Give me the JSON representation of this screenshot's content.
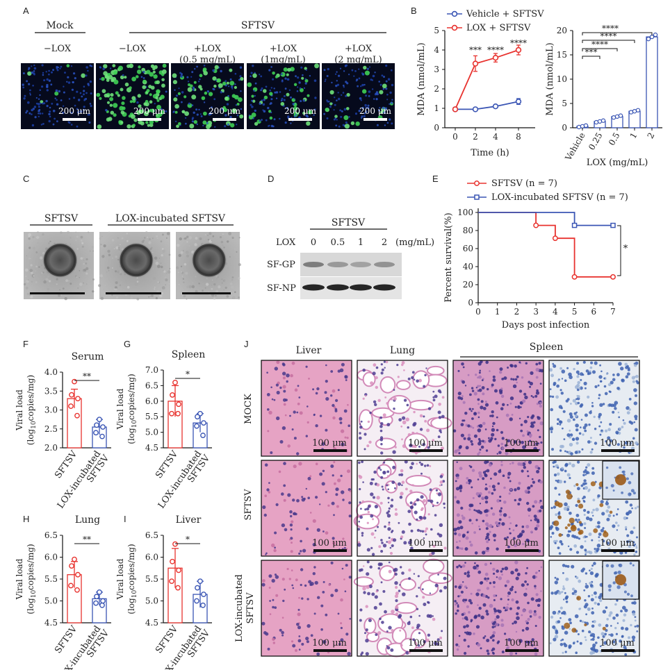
{
  "panels": {
    "A": "A",
    "B": "B",
    "C": "C",
    "D": "D",
    "E": "E",
    "F": "F",
    "G": "G",
    "H": "H",
    "I": "I",
    "J": "J"
  },
  "panel_a": {
    "mock_header": "Mock",
    "sftsv_header": "SFTSV",
    "labels": [
      {
        "l1": "−LOX",
        "l2": ""
      },
      {
        "l1": "−LOX",
        "l2": ""
      },
      {
        "l1": "+LOX",
        "l2": "(0.5 mg/mL)"
      },
      {
        "l1": "+LOX",
        "l2": "(1mg/mL)"
      },
      {
        "l1": "+LOX",
        "l2": "(2 mg/mL)"
      }
    ],
    "scale_text": "200 μm",
    "green_density": [
      0.02,
      0.85,
      0.45,
      0.3,
      0.12
    ]
  },
  "panel_c": {
    "label_left": "SFTSV",
    "label_right": "LOX-incubated SFTSV"
  },
  "panel_d": {
    "header": "SFTSV",
    "lox_label": "LOX",
    "conc": [
      "0",
      "0.5",
      "1",
      "2"
    ],
    "unit": "(mg/mL)",
    "rows": [
      "SF-GP",
      "SF-NP"
    ]
  },
  "panel_j": {
    "columns": [
      "Liver",
      "Lung",
      "Spleen"
    ],
    "rows": [
      "MOCK",
      "SFTSV",
      "LOX-incubated",
      "SFTSV"
    ],
    "scale_text": "100 μm"
  },
  "chart_data": [
    {
      "id": "B-left",
      "type": "line",
      "x": [
        0,
        2,
        4,
        8
      ],
      "x_ticks": [
        "0",
        "2",
        "4",
        "8"
      ],
      "xlabel": "Time (h)",
      "ylabel": "MDA (nmol/mL)",
      "ylim": [
        0,
        5
      ],
      "series": [
        {
          "name": "Vehicle + SFTSV",
          "color": "#3a55b4",
          "values": [
            0.95,
            0.95,
            1.1,
            1.35
          ]
        },
        {
          "name": "LOX + SFTSV",
          "color": "#e8322e",
          "values": [
            0.95,
            3.3,
            3.6,
            4.0
          ]
        }
      ],
      "annotations": [
        "***",
        "****",
        "****"
      ]
    },
    {
      "id": "B-right",
      "type": "bar",
      "categories": [
        "Vehicle",
        "0.25",
        "0.5",
        "1",
        "2"
      ],
      "values": [
        0.3,
        1.3,
        2.3,
        3.4,
        18.7
      ],
      "xlabel": "LOX (mg/mL)",
      "ylabel": "MDA (nmol/mL)",
      "ylim": [
        0,
        20
      ],
      "y_ticks": [
        "0",
        "5",
        "10",
        "15",
        "20"
      ],
      "brackets": [
        "****",
        "****",
        "****",
        "***"
      ]
    },
    {
      "id": "E",
      "type": "line",
      "xlabel": "Days post infection",
      "ylabel": "Percent survival(%)",
      "xlim": [
        0,
        7
      ],
      "ylim": [
        0,
        100
      ],
      "series": [
        {
          "name": "SFTSV",
          "name_n": "(n = 7)",
          "color": "#e8322e",
          "steps": [
            [
              0,
              100
            ],
            [
              3,
              100
            ],
            [
              3,
              85.7
            ],
            [
              4,
              85.7
            ],
            [
              4,
              71.4
            ],
            [
              5,
              71.4
            ],
            [
              5,
              28.6
            ],
            [
              7,
              28.6
            ]
          ]
        },
        {
          "name": "LOX-incubated SFTSV",
          "name_n": "(n = 7)",
          "color": "#3a55b4",
          "steps": [
            [
              0,
              100
            ],
            [
              5,
              100
            ],
            [
              5,
              85.7
            ],
            [
              7,
              85.7
            ]
          ]
        }
      ],
      "significance": "*"
    },
    {
      "id": "F",
      "type": "bar",
      "title": "Serum",
      "categories": [
        "SFTSV",
        "LOX-incubated SFTSV"
      ],
      "values": [
        3.3,
        2.55
      ],
      "err": [
        0.25,
        0.2
      ],
      "points": [
        [
          3.75,
          3.4,
          3.3,
          3.1,
          2.85
        ],
        [
          2.75,
          2.6,
          2.55,
          2.4,
          2.3
        ]
      ],
      "ylabel": "Viral load (log10copies/mg)",
      "ylim": [
        2.0,
        4.0
      ],
      "y_ticks": [
        "2.0",
        "2.5",
        "3.0",
        "3.5",
        "4.0"
      ],
      "significance": "**"
    },
    {
      "id": "G",
      "type": "bar",
      "title": "Spleen",
      "categories": [
        "SFTSV",
        "LOX-incubated SFTSV"
      ],
      "values": [
        6.0,
        5.3
      ],
      "err": [
        0.5,
        0.3
      ],
      "points": [
        [
          6.6,
          6.2,
          5.9,
          5.6,
          5.6
        ],
        [
          5.6,
          5.5,
          5.3,
          5.2,
          4.9
        ]
      ],
      "ylabel": "Viral load (log10copies/mg)",
      "ylim": [
        4.5,
        7.0
      ],
      "y_ticks": [
        "4.5",
        "5.0",
        "5.5",
        "6.0",
        "6.5",
        "7.0"
      ],
      "significance": "*"
    },
    {
      "id": "H",
      "type": "bar",
      "title": "Lung",
      "categories": [
        "SFTSV",
        "LOX-incubated SFTSV"
      ],
      "values": [
        5.6,
        5.05
      ],
      "err": [
        0.3,
        0.15
      ],
      "points": [
        [
          5.95,
          5.8,
          5.6,
          5.35,
          5.25
        ],
        [
          5.2,
          5.1,
          5.0,
          4.95,
          4.9
        ]
      ],
      "ylabel": "Viral load (log10copies/mg)",
      "ylim": [
        4.5,
        6.5
      ],
      "y_ticks": [
        "4.5",
        "5.0",
        "5.5",
        "6.0",
        "6.5"
      ],
      "significance": "**"
    },
    {
      "id": "I",
      "type": "bar",
      "title": "Liver",
      "categories": [
        "SFTSV",
        "LOX-incubated SFTSV"
      ],
      "values": [
        5.75,
        5.15
      ],
      "err": [
        0.45,
        0.3
      ],
      "points": [
        [
          6.3,
          5.9,
          5.7,
          5.45,
          5.3
        ],
        [
          5.45,
          5.3,
          5.15,
          5.0,
          4.9
        ]
      ],
      "ylabel": "Viral load (log10copies/mg)",
      "ylim": [
        4.5,
        6.5
      ],
      "y_ticks": [
        "4.5",
        "5.0",
        "5.5",
        "6.0",
        "6.5"
      ],
      "significance": "*"
    }
  ]
}
